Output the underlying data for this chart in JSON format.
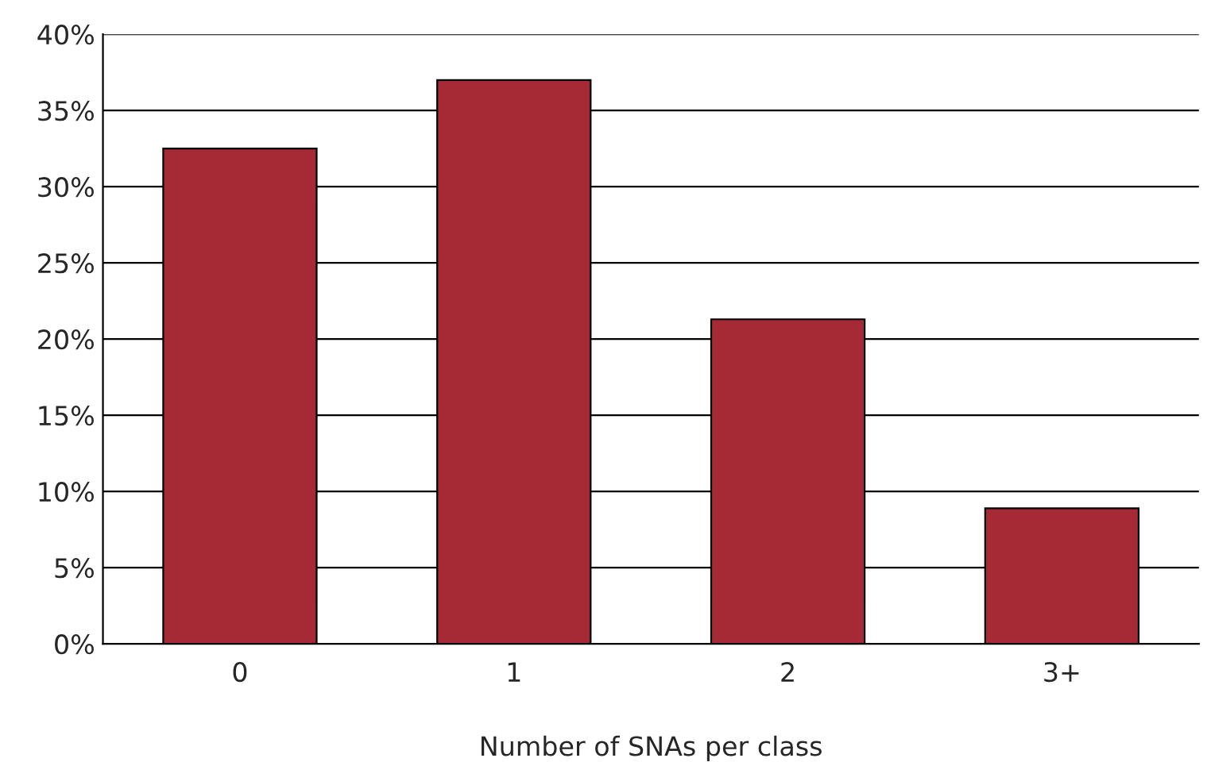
{
  "chart_data": {
    "type": "bar",
    "xlabel": "Number of SNAs per class",
    "categories": [
      "0",
      "1",
      "2",
      "3+"
    ],
    "values": [
      32.5,
      37,
      21.3,
      8.9
    ],
    "color": "#a52a35",
    "ylim": [
      0,
      40
    ],
    "yticks": [
      {
        "value": 0,
        "label": "0%"
      },
      {
        "value": 5,
        "label": "5%"
      },
      {
        "value": 10,
        "label": "10%"
      },
      {
        "value": 15,
        "label": "15%"
      },
      {
        "value": 20,
        "label": "20%"
      },
      {
        "value": 25,
        "label": "25%"
      },
      {
        "value": 30,
        "label": "30%"
      },
      {
        "value": 35,
        "label": "35%"
      },
      {
        "value": 40,
        "label": "40%"
      }
    ],
    "grid": "y"
  }
}
